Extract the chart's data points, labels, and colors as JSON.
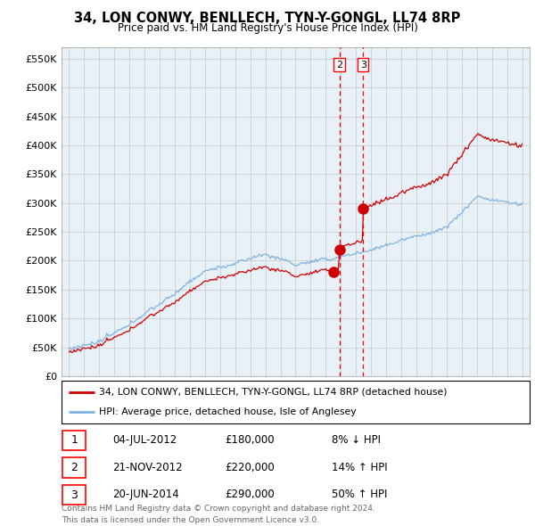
{
  "title": "34, LON CONWY, BENLLECH, TYN-Y-GONGL, LL74 8RP",
  "subtitle": "Price paid vs. HM Land Registry's House Price Index (HPI)",
  "ylim": [
    0,
    570000
  ],
  "yticks": [
    0,
    50000,
    100000,
    150000,
    200000,
    250000,
    300000,
    350000,
    400000,
    450000,
    500000,
    550000
  ],
  "hpi_color": "#7fb3e0",
  "price_color": "#cc0000",
  "grid_color": "#cccccc",
  "bg_color": "#ffffff",
  "chart_bg": "#e8f0f8",
  "legend_label_red": "34, LON CONWY, BENLLECH, TYN-Y-GONGL, LL74 8RP (detached house)",
  "legend_label_blue": "HPI: Average price, detached house, Isle of Anglesey",
  "transaction_labels": [
    "1",
    "2",
    "3"
  ],
  "transaction_dates": [
    "04-JUL-2012",
    "21-NOV-2012",
    "20-JUN-2014"
  ],
  "transaction_prices": [
    "£180,000",
    "£220,000",
    "£290,000"
  ],
  "transaction_hpi": [
    "8% ↓ HPI",
    "14% ↑ HPI",
    "50% ↑ HPI"
  ],
  "footer1": "Contains HM Land Registry data © Crown copyright and database right 2024.",
  "footer2": "This data is licensed under the Open Government Licence v3.0.",
  "t1": 2012.5,
  "t2": 2012.9,
  "t3": 2014.47,
  "p1": 180000,
  "p2": 220000,
  "p3": 290000,
  "xmin": 1994.5,
  "xmax": 2025.5
}
